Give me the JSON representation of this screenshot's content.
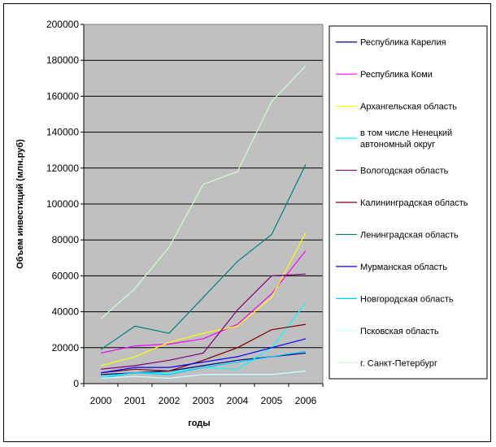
{
  "chart_data": {
    "type": "line",
    "title": "",
    "xlabel": "годы",
    "ylabel": "Объем инвестиций (млн.руб)",
    "x": [
      "2000",
      "2001",
      "2002",
      "2003",
      "2004",
      "2005",
      "2006"
    ],
    "ylim": [
      0,
      200000
    ],
    "yticks": [
      "0",
      "20000",
      "40000",
      "60000",
      "80000",
      "100000",
      "120000",
      "140000",
      "160000",
      "180000",
      "200000"
    ],
    "grid": true,
    "plot_background": "#c0c0c0",
    "legend_position": "right",
    "series": [
      {
        "name": "Республика Карелия",
        "color": "#000080",
        "values": [
          5000,
          6000,
          7000,
          10000,
          13000,
          15000,
          17000
        ]
      },
      {
        "name": "Республика Коми",
        "color": "#ff00ff",
        "values": [
          17000,
          21000,
          22000,
          25000,
          33000,
          50000,
          74000
        ]
      },
      {
        "name": "Архангельская область",
        "color": "#ffff00",
        "values": [
          10000,
          15000,
          23000,
          28000,
          32000,
          48000,
          84000
        ]
      },
      {
        "name": "в том числе Ненецкий автономный округ",
        "color": "#00ffff",
        "values": [
          4000,
          6000,
          6000,
          9000,
          8000,
          20000,
          45000
        ]
      },
      {
        "name": "Вологодская область",
        "color": "#800080",
        "values": [
          8000,
          10000,
          13000,
          17000,
          41000,
          60000,
          61000
        ]
      },
      {
        "name": "Калининградская область",
        "color": "#800000",
        "values": [
          6000,
          8000,
          7000,
          13000,
          20000,
          30000,
          33000
        ]
      },
      {
        "name": "Ленинградская область",
        "color": "#008080",
        "values": [
          19000,
          32000,
          28000,
          48000,
          68000,
          83000,
          122000
        ]
      },
      {
        "name": "Мурманская область",
        "color": "#0000ff",
        "values": [
          6000,
          9000,
          9000,
          12000,
          15000,
          20000,
          25000
        ]
      },
      {
        "name": "Новгородская область",
        "color": "#00ccff",
        "values": [
          3000,
          6000,
          5000,
          9000,
          12000,
          15000,
          18000
        ]
      },
      {
        "name": "Псковская область",
        "color": "#ccffff",
        "values": [
          3000,
          4000,
          3000,
          5000,
          5000,
          5000,
          7000
        ]
      },
      {
        "name": "г. Санкт-Петербург",
        "color": "#ccffcc",
        "values": [
          36000,
          53000,
          76000,
          111000,
          118000,
          157000,
          177000
        ]
      }
    ]
  }
}
